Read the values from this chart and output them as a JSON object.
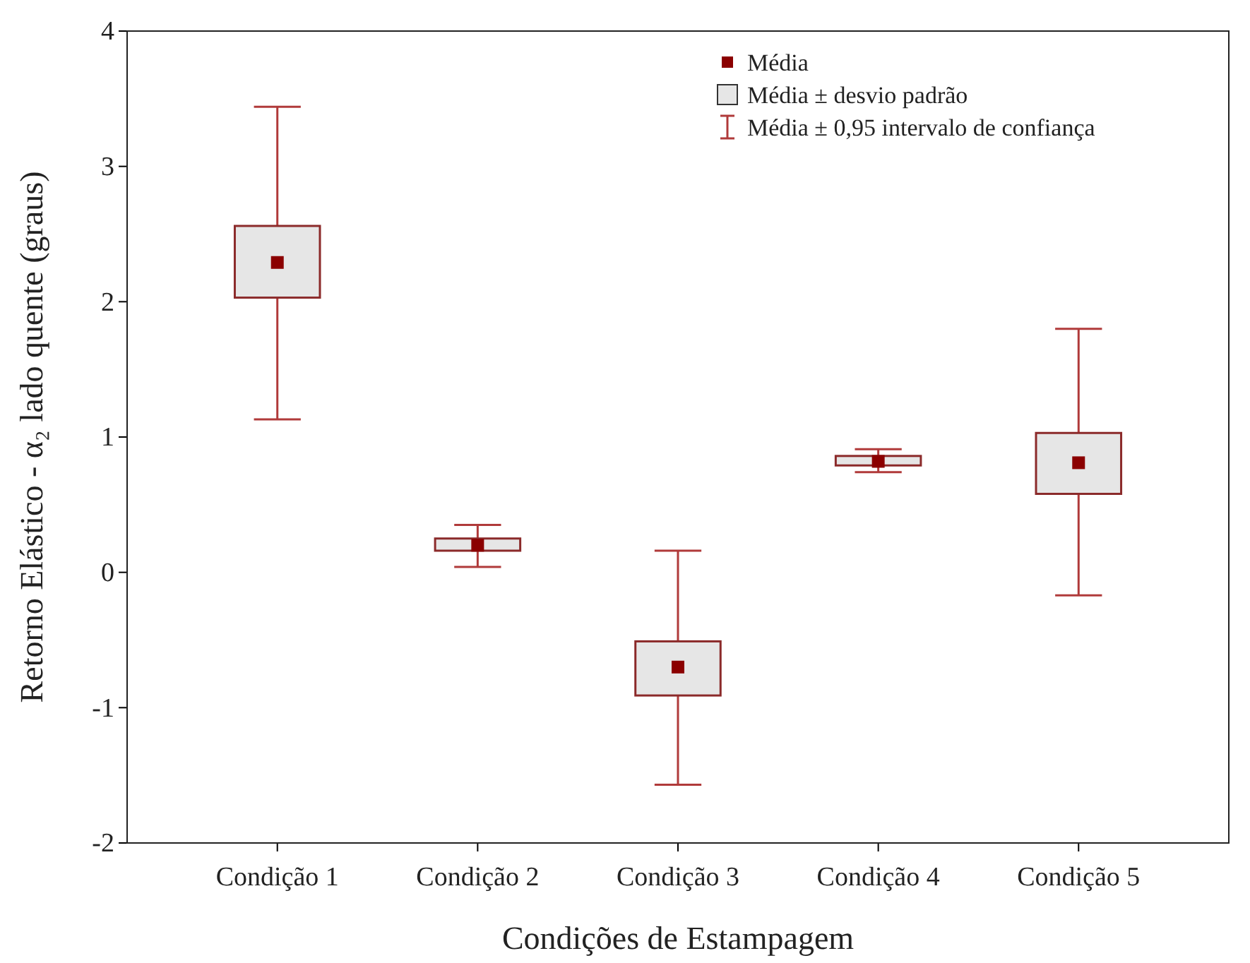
{
  "chart_data": {
    "type": "box",
    "xlabel": "Condições de Estampagem",
    "ylabel": "Retorno Elástico - α₂ lado quente (graus)",
    "categories": [
      "Condição 1",
      "Condição 2",
      "Condição 3",
      "Condição 4",
      "Condição 5"
    ],
    "ylim": [
      -2,
      4
    ],
    "yticks": [
      -2,
      -1,
      0,
      1,
      2,
      3,
      4
    ],
    "grid": false,
    "marker": "square",
    "series": [
      {
        "color": "#e6e6e6",
        "boxes": [
          {
            "low": 1.13,
            "q1": 2.03,
            "q3": 2.56,
            "high": 3.44,
            "mean": 2.29
          },
          {
            "low": 0.04,
            "q1": 0.16,
            "q3": 0.25,
            "high": 0.35,
            "mean": 0.2
          },
          {
            "low": -1.57,
            "q1": -0.91,
            "q3": -0.51,
            "high": 0.16,
            "mean": -0.7
          },
          {
            "low": 0.74,
            "q1": 0.79,
            "q3": 0.86,
            "high": 0.91,
            "mean": 0.82
          },
          {
            "low": -0.17,
            "q1": 0.58,
            "q3": 1.03,
            "high": 1.8,
            "mean": 0.81
          }
        ]
      }
    ],
    "annotations": [
      "Média",
      "Média ± desvio padrão",
      "Média ± 0,95 intervalo de confiança"
    ]
  }
}
